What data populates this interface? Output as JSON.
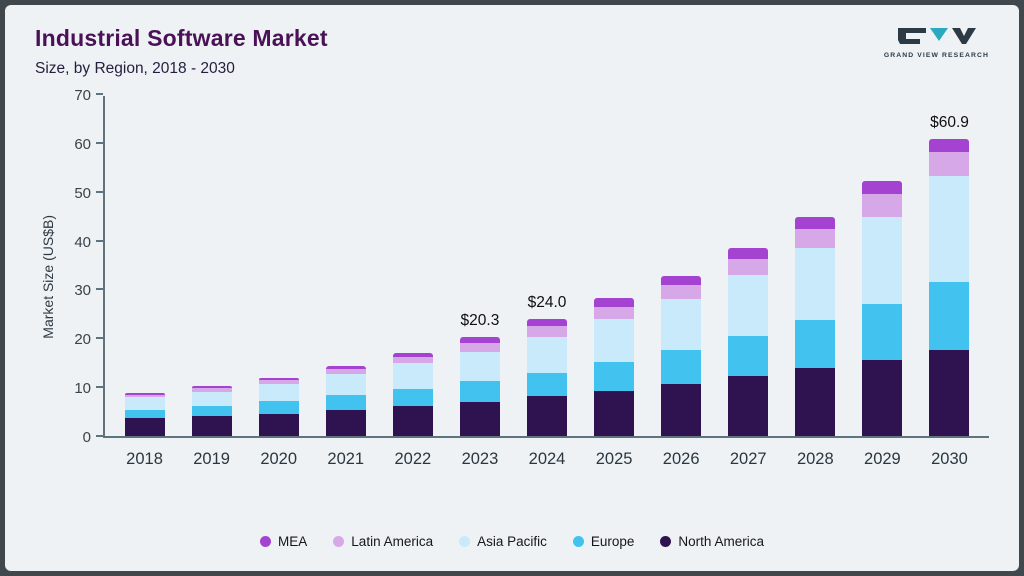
{
  "header": {
    "title": "Industrial Software Market",
    "subtitle": "Size, by Region, 2018 - 2030"
  },
  "logo": {
    "text": "GRAND VIEW RESEARCH"
  },
  "chart_data": {
    "type": "bar",
    "stacked": true,
    "title": "Industrial Software Market Size, by Region, 2018 - 2030",
    "xlabel": "",
    "ylabel": "Market Size (US$B)",
    "ylim": [
      0,
      70
    ],
    "yticks": [
      0,
      10,
      20,
      30,
      40,
      50,
      60,
      70
    ],
    "grid": false,
    "legend_position": "bottom",
    "categories": [
      "2018",
      "2019",
      "2020",
      "2021",
      "2022",
      "2023",
      "2024",
      "2025",
      "2026",
      "2027",
      "2028",
      "2029",
      "2030"
    ],
    "series": [
      {
        "name": "North America",
        "color": "#2f1350",
        "values": [
          3.6,
          4.1,
          4.6,
          5.3,
          6.1,
          7.0,
          8.1,
          9.3,
          10.7,
          12.2,
          13.9,
          15.6,
          17.6
        ]
      },
      {
        "name": "Europe",
        "color": "#41c2ef",
        "values": [
          1.8,
          2.1,
          2.5,
          3.0,
          3.6,
          4.2,
          4.9,
          5.9,
          7.0,
          8.3,
          9.8,
          11.5,
          13.9
        ]
      },
      {
        "name": "Asia Pacific",
        "color": "#c8eafa",
        "values": [
          2.5,
          2.9,
          3.5,
          4.3,
          5.2,
          6.1,
          7.3,
          8.7,
          10.3,
          12.4,
          14.8,
          17.8,
          21.7
        ]
      },
      {
        "name": "Latin America",
        "color": "#d7a8e8",
        "values": [
          0.6,
          0.7,
          0.8,
          1.1,
          1.3,
          1.8,
          2.2,
          2.6,
          2.9,
          3.4,
          3.9,
          4.6,
          4.9
        ]
      },
      {
        "name": "MEA",
        "color": "#a443d1",
        "values": [
          0.3,
          0.4,
          0.5,
          0.6,
          0.8,
          1.2,
          1.5,
          1.7,
          1.8,
          2.2,
          2.4,
          2.7,
          2.8
        ]
      }
    ],
    "totals": [
      8.8,
      10.2,
      11.9,
      14.3,
      17.0,
      20.3,
      24.0,
      28.2,
      32.7,
      38.5,
      44.8,
      52.2,
      60.9
    ],
    "annotations": {
      "2023": "$20.3",
      "2024": "$24.0",
      "2030": "$60.9"
    },
    "legend": [
      {
        "label": "MEA",
        "color": "#a443d1"
      },
      {
        "label": "Latin America",
        "color": "#d7a8e8"
      },
      {
        "label": "Asia Pacific",
        "color": "#c8eafa"
      },
      {
        "label": "Europe",
        "color": "#41c2ef"
      },
      {
        "label": "North America",
        "color": "#2f1350"
      }
    ],
    "colors": {
      "background": "#eef2f4",
      "frame": "#41484d",
      "axis": "#5e737e",
      "title": "#4a1157"
    }
  }
}
